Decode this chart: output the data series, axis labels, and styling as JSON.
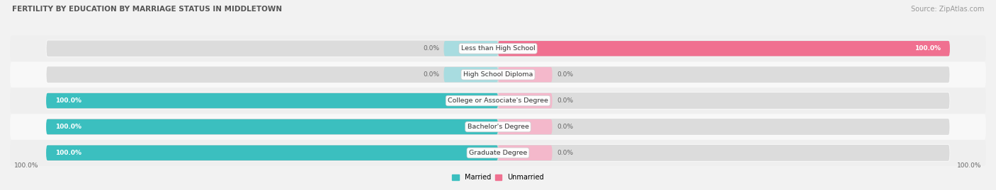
{
  "title": "FERTILITY BY EDUCATION BY MARRIAGE STATUS IN MIDDLETOWN",
  "source": "Source: ZipAtlas.com",
  "categories": [
    "Less than High School",
    "High School Diploma",
    "College or Associate's Degree",
    "Bachelor's Degree",
    "Graduate Degree"
  ],
  "married": [
    0.0,
    0.0,
    100.0,
    100.0,
    100.0
  ],
  "unmarried": [
    100.0,
    0.0,
    0.0,
    0.0,
    0.0
  ],
  "married_color": "#3BBFBF",
  "unmarried_color": "#F07090",
  "married_light_color": "#A8DCE0",
  "unmarried_light_color": "#F4B8CB",
  "bg_color": "#F2F2F2",
  "bar_bg_color": "#E5E5E5",
  "row_bg_color": "#ECECEC",
  "title_color": "#555555",
  "label_color": "#666666",
  "source_color": "#999999",
  "bar_height": 0.58,
  "figsize": [
    14.06,
    2.69
  ],
  "dpi": 100
}
